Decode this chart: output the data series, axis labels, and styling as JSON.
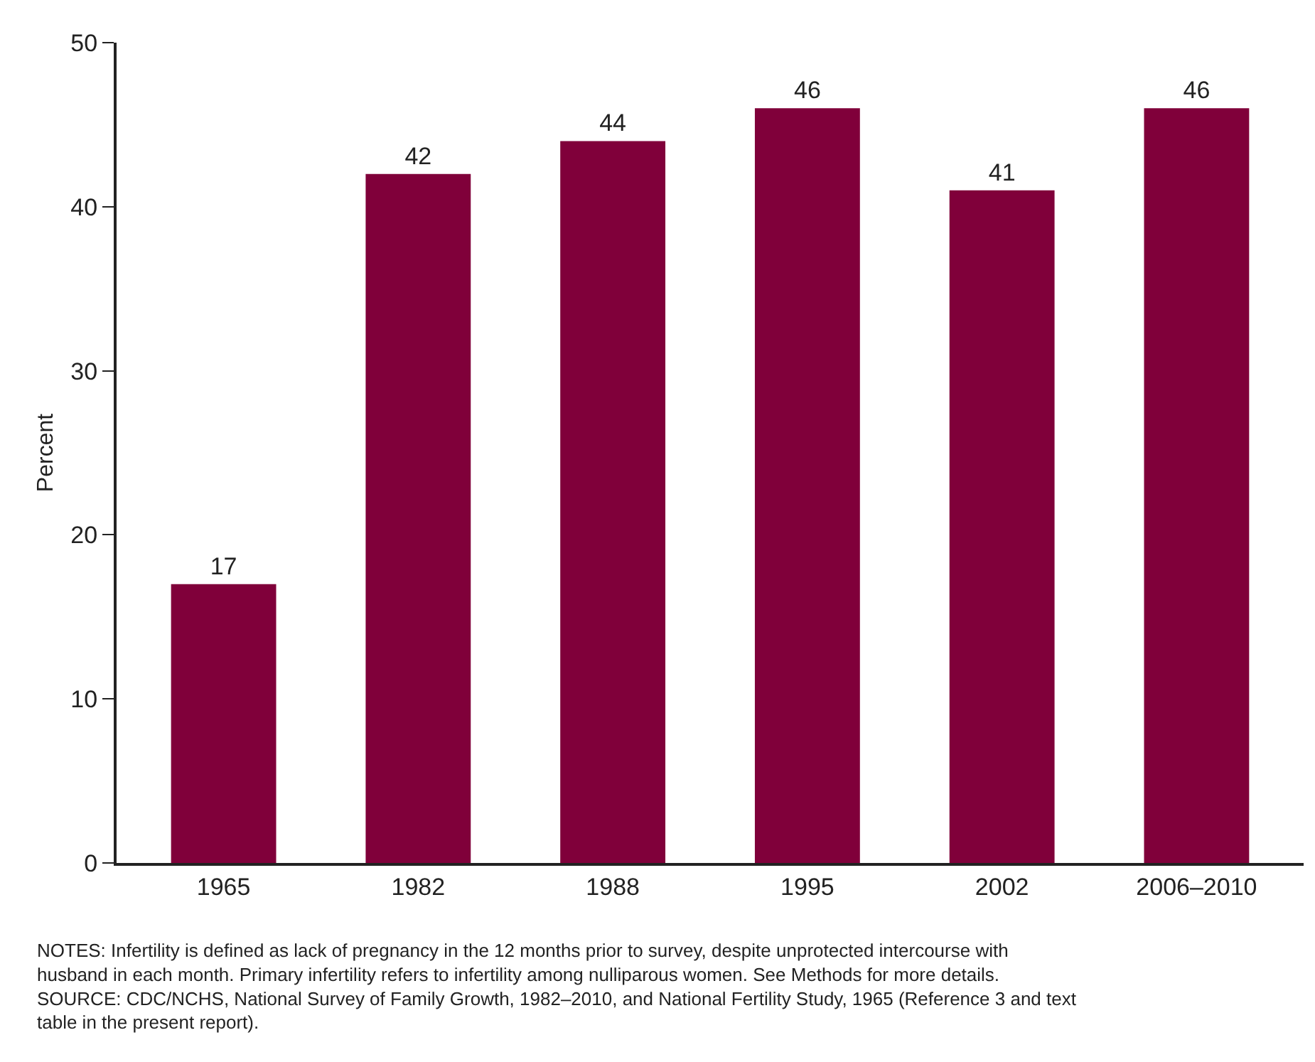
{
  "chart_data": {
    "type": "bar",
    "ylabel": "Percent",
    "categories": [
      "1965",
      "1982",
      "1988",
      "1995",
      "2002",
      "2006–2010"
    ],
    "values": [
      17,
      42,
      44,
      46,
      41,
      46
    ],
    "color": "#80003a",
    "ylim": [
      0,
      50
    ],
    "yticks": [
      0,
      10,
      20,
      30,
      40,
      50
    ],
    "data_labels": true,
    "annotations": [
      "NOTES: Infertility is defined as lack of pregnancy in the 12 months prior to survey, despite unprotected intercourse with husband in each month. Primary infertility refers to infertility among nulliparous women. See Methods for more details.",
      "SOURCE: CDC/NCHS, National Survey of Family Growth, 1982–2010, and National Fertility Study, 1965 (Reference 3 and text table in the present report)."
    ]
  }
}
